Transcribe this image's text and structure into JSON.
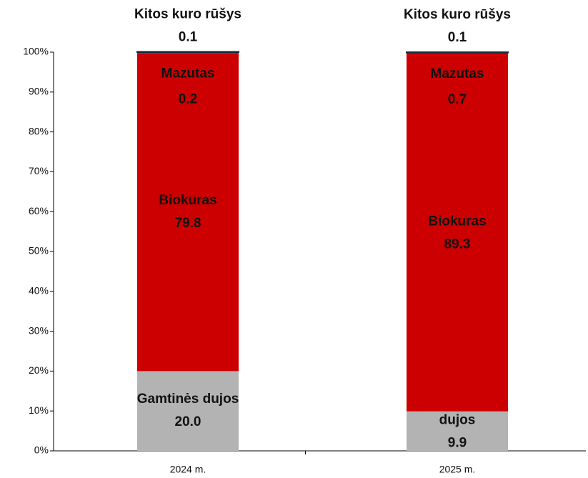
{
  "chart_data": {
    "type": "stacked_bar",
    "categories": [
      "2024 m.",
      "2025 m."
    ],
    "series": [
      {
        "name": "Gamtinės dujos",
        "color": "#b3b3b3",
        "values": [
          20.0,
          9.9
        ],
        "value_labels": [
          "20.0",
          "9.9"
        ]
      },
      {
        "name": "Biokuras",
        "color": "#cc0000",
        "values": [
          79.8,
          89.3
        ]
      },
      {
        "name": "Mazutas",
        "color": "#cc0000",
        "values": [
          0.2,
          0.7
        ]
      },
      {
        "name": "Kitos kuro rūšys",
        "color": "#2f5f70",
        "values": [
          0.1,
          0.1
        ]
      }
    ],
    "ylim": [
      0,
      100
    ],
    "yticks": [
      {
        "value": 0,
        "label": "0%"
      },
      {
        "value": 10,
        "label": "10%"
      },
      {
        "value": 20,
        "label": "20%"
      },
      {
        "value": 30,
        "label": "30%"
      },
      {
        "value": 40,
        "label": "40%"
      },
      {
        "value": 50,
        "label": "50%"
      },
      {
        "value": 60,
        "label": "60%"
      },
      {
        "value": 70,
        "label": "70%"
      },
      {
        "value": 80,
        "label": "80%"
      },
      {
        "value": 90,
        "label": "90%"
      },
      {
        "value": 100,
        "label": "100%"
      }
    ]
  }
}
